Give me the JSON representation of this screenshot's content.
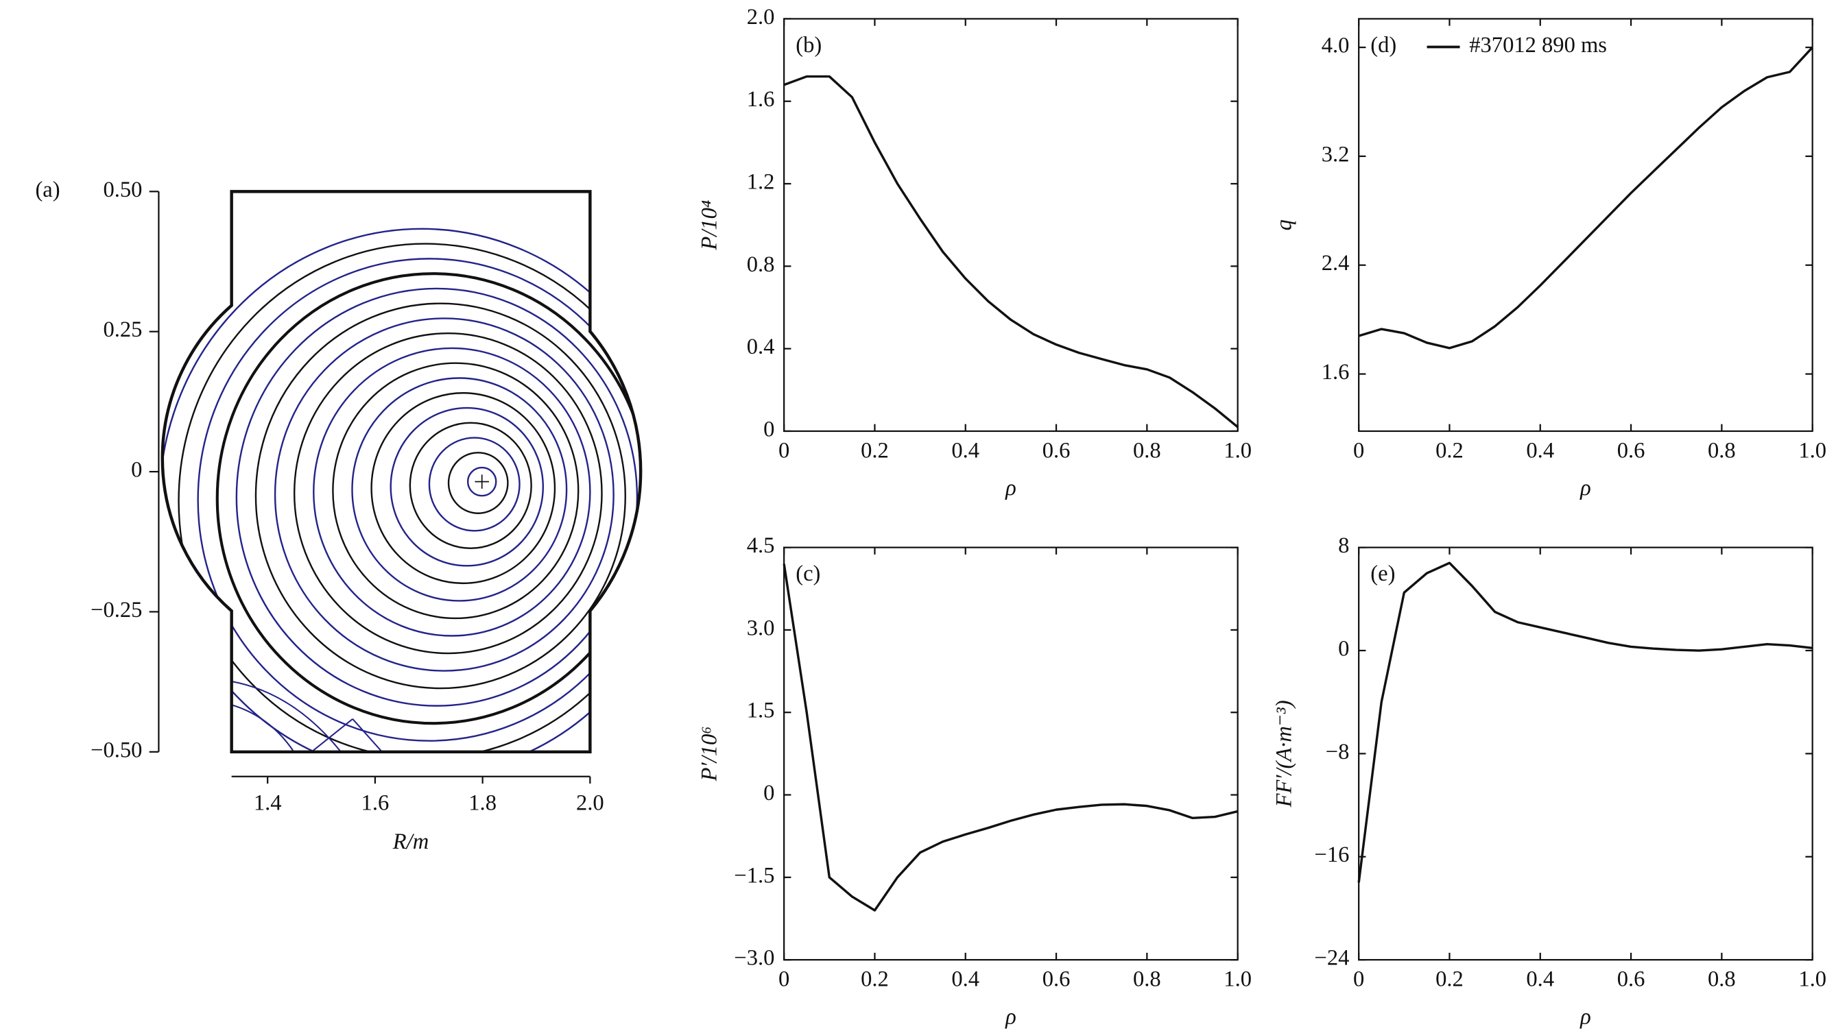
{
  "chart_data": [
    {
      "type": "contour",
      "label": "(a)",
      "xlabel": "R/m",
      "xlim": [
        1.333,
        2.0
      ],
      "xticks": [
        1.4,
        1.6,
        1.8,
        {
          "value": 2,
          "label": "2.0"
        }
      ],
      "ylim": [
        -0.5,
        0.5
      ],
      "yticks": [
        {
          "value": 0.5,
          "label": "0.50"
        },
        0.25,
        0,
        {
          "value": -0.25,
          "label": "−0.25"
        },
        {
          "value": -0.5,
          "label": "−0.50"
        }
      ]
    },
    {
      "type": "line",
      "label": "(b)",
      "xlabel": "ρ",
      "ylabel": "P/10⁴",
      "color": "#111",
      "x": [
        0,
        0.05,
        0.1,
        0.15,
        0.2,
        0.25,
        0.3,
        0.35,
        0.4,
        0.45,
        0.5,
        0.55,
        0.6,
        0.65,
        0.7,
        0.75,
        0.8,
        0.85,
        0.9,
        0.95,
        1
      ],
      "values": [
        1.68,
        1.72,
        1.72,
        1.62,
        1.4,
        1.2,
        1.03,
        0.87,
        0.74,
        0.63,
        0.54,
        0.47,
        0.42,
        0.38,
        0.35,
        0.32,
        0.3,
        0.26,
        0.19,
        0.11,
        0.02
      ],
      "xlim": [
        0,
        1
      ],
      "xticks": [
        0,
        0.2,
        0.4,
        0.6,
        0.8,
        {
          "value": 1,
          "label": "1.0"
        }
      ],
      "ylim": [
        0,
        2
      ],
      "yticks": [
        0,
        0.4,
        0.8,
        1.2,
        1.6,
        {
          "value": 2,
          "label": "2.0"
        }
      ]
    },
    {
      "type": "line",
      "label": "(c)",
      "xlabel": "ρ",
      "ylabel": "P′/10⁶",
      "color": "#111",
      "x": [
        0,
        0.05,
        0.1,
        0.15,
        0.2,
        0.25,
        0.3,
        0.35,
        0.4,
        0.45,
        0.5,
        0.55,
        0.6,
        0.65,
        0.7,
        0.75,
        0.8,
        0.85,
        0.9,
        0.95,
        1
      ],
      "values": [
        4.2,
        1.5,
        -1.5,
        -1.85,
        -2.1,
        -1.5,
        -1.05,
        -0.85,
        -0.72,
        -0.6,
        -0.47,
        -0.36,
        -0.27,
        -0.22,
        -0.18,
        -0.17,
        -0.2,
        -0.28,
        -0.42,
        -0.4,
        -0.3
      ],
      "xlim": [
        0,
        1
      ],
      "xticks": [
        0,
        0.2,
        0.4,
        0.6,
        0.8,
        {
          "value": 1,
          "label": "1.0"
        }
      ],
      "ylim": [
        -3,
        4.5
      ],
      "yticks": [
        {
          "value": -3,
          "label": "−3.0"
        },
        {
          "value": -1.5,
          "label": "−1.5"
        },
        0,
        1.5,
        {
          "value": 3,
          "label": "3.0"
        },
        4.5
      ]
    },
    {
      "type": "line",
      "label": "(d)",
      "xlabel": "ρ",
      "ylabel": "q",
      "x": [
        0,
        0.05,
        0.1,
        0.15,
        0.2,
        0.25,
        0.3,
        0.35,
        0.4,
        0.45,
        0.5,
        0.55,
        0.6,
        0.65,
        0.7,
        0.75,
        0.8,
        0.85,
        0.9,
        0.95,
        1
      ],
      "series": [
        {
          "name": "#37012 890 ms",
          "color": "#111",
          "values": [
            1.88,
            1.93,
            1.9,
            1.83,
            1.79,
            1.84,
            1.95,
            2.09,
            2.25,
            2.42,
            2.59,
            2.76,
            2.93,
            3.09,
            3.25,
            3.41,
            3.56,
            3.68,
            3.78,
            3.82,
            4.0
          ]
        }
      ],
      "legend": "upper left",
      "xlim": [
        0,
        1
      ],
      "xticks": [
        0,
        0.2,
        0.4,
        0.6,
        0.8,
        {
          "value": 1,
          "label": "1.0"
        }
      ],
      "ylim": [
        1.18,
        4.21
      ],
      "yticks": [
        1.6,
        2.4,
        3.2,
        {
          "value": 4,
          "label": "4.0"
        }
      ]
    },
    {
      "type": "line",
      "label": "(e)",
      "xlabel": "ρ",
      "ylabel": "FF′/(A·m⁻³)",
      "color": "#111",
      "x": [
        0,
        0.05,
        0.1,
        0.15,
        0.2,
        0.25,
        0.3,
        0.35,
        0.4,
        0.45,
        0.5,
        0.55,
        0.6,
        0.65,
        0.7,
        0.75,
        0.8,
        0.85,
        0.9,
        0.95,
        1
      ],
      "values": [
        -18,
        -4,
        4.5,
        6,
        6.8,
        5,
        3,
        2.2,
        1.8,
        1.4,
        1,
        0.6,
        0.3,
        0.15,
        0.05,
        0,
        0.1,
        0.3,
        0.5,
        0.4,
        0.2
      ],
      "xlim": [
        0,
        1
      ],
      "xticks": [
        0,
        0.2,
        0.4,
        0.6,
        0.8,
        {
          "value": 1,
          "label": "1.0"
        }
      ],
      "ylim": [
        -24,
        8
      ],
      "yticks": [
        {
          "value": -24,
          "label": "−24"
        },
        {
          "value": -16,
          "label": "−16"
        },
        {
          "value": -8,
          "label": "−8"
        },
        0,
        8
      ]
    }
  ]
}
